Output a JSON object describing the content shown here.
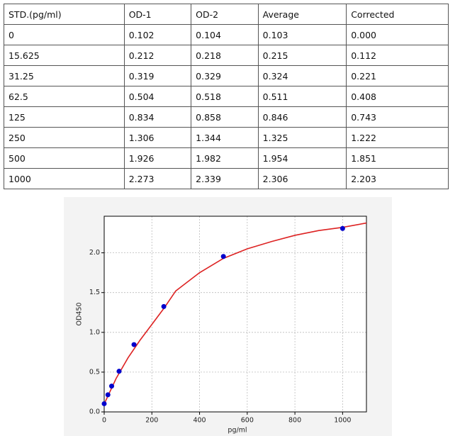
{
  "table": {
    "header": [
      "STD.(pg/ml)",
      "OD-1",
      "OD-2",
      "Average",
      "Corrected"
    ],
    "rows": [
      [
        "0",
        "0.102",
        "0.104",
        "0.103",
        "0.000"
      ],
      [
        "15.625",
        "0.212",
        "0.218",
        "0.215",
        "0.112"
      ],
      [
        "31.25",
        "0.319",
        "0.329",
        "0.324",
        "0.221"
      ],
      [
        "62.5",
        "0.504",
        "0.518",
        "0.511",
        "0.408"
      ],
      [
        "125",
        "0.834",
        "0.858",
        "0.846",
        "0.743"
      ],
      [
        "250",
        "1.306",
        "1.344",
        "1.325",
        "1.222"
      ],
      [
        "500",
        "1.926",
        "1.982",
        "1.954",
        "1.851"
      ],
      [
        "1000",
        "2.273",
        "2.339",
        "2.306",
        "2.203"
      ]
    ]
  },
  "chart_data": {
    "type": "scatter",
    "x_label": "pg/ml",
    "y_label": "OD450",
    "x": [
      0,
      15.625,
      31.25,
      62.5,
      125,
      250,
      500,
      1000
    ],
    "values": [
      0.103,
      0.215,
      0.324,
      0.511,
      0.846,
      1.325,
      1.954,
      2.306
    ],
    "color": "#0000cc",
    "fit_curve": {
      "color": "#dd2222",
      "x": [
        0,
        50,
        100,
        150,
        200,
        250,
        300,
        400,
        500,
        600,
        700,
        800,
        900,
        1000,
        1100
      ],
      "values": [
        0.1,
        0.42,
        0.68,
        0.9,
        1.1,
        1.3,
        1.52,
        1.75,
        1.93,
        2.05,
        2.14,
        2.22,
        2.28,
        2.32,
        2.375
      ]
    },
    "xlim": [
      0,
      1100
    ],
    "ylim": [
      0,
      2.46
    ],
    "xticks": [
      0,
      200,
      400,
      600,
      800,
      1000
    ],
    "yticks": [
      {
        "value": 0,
        "label": "0.0"
      },
      0.5,
      {
        "value": 1,
        "label": "1.0"
      },
      1.5,
      {
        "value": 2,
        "label": "2.0"
      }
    ],
    "grid": true
  }
}
